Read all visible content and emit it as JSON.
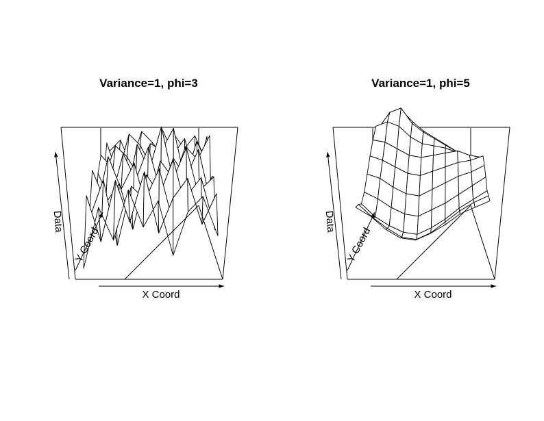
{
  "chart_data": [
    {
      "type": "perspective-surface",
      "title": "Variance=1, phi=3",
      "xlabel": "X Coord",
      "ylabel": "Y Coord",
      "zlabel": "Data",
      "xlim": [
        0,
        1
      ],
      "ylim": [
        0,
        1
      ],
      "zlim": [
        -2.6,
        2.6
      ],
      "grid_size": 10,
      "x": [
        0.0,
        0.111,
        0.222,
        0.333,
        0.444,
        0.556,
        0.667,
        0.778,
        0.889,
        1.0
      ],
      "y": [
        0.0,
        0.111,
        0.222,
        0.333,
        0.444,
        0.556,
        0.667,
        0.778,
        0.889,
        1.0
      ],
      "z": [
        [
          -2.2,
          0.6,
          -0.9,
          1.4,
          -0.3,
          0.9,
          -1.6,
          0.4,
          1.1,
          -0.7
        ],
        [
          0.8,
          -1.3,
          1.5,
          -0.4,
          1.9,
          -0.9,
          0.7,
          1.6,
          -0.5,
          0.9
        ],
        [
          -0.6,
          1.2,
          -1.8,
          0.9,
          0.3,
          1.7,
          -0.8,
          0.5,
          1.3,
          -1.1
        ],
        [
          1.3,
          -0.2,
          0.7,
          -1.4,
          1.1,
          0.2,
          1.8,
          -0.6,
          0.4,
          1.0
        ],
        [
          -1.1,
          1.6,
          0.1,
          1.3,
          -0.9,
          1.4,
          0.6,
          2.0,
          -0.3,
          0.7
        ],
        [
          0.5,
          -0.8,
          1.4,
          0.2,
          1.7,
          -0.4,
          1.2,
          0.3,
          1.6,
          -0.9
        ],
        [
          1.0,
          0.4,
          -1.2,
          1.5,
          0.3,
          2.3,
          -0.2,
          1.4,
          0.8,
          1.9
        ],
        [
          -0.4,
          1.1,
          0.6,
          -0.3,
          1.2,
          0.9,
          1.9,
          -0.5,
          1.3,
          0.2
        ],
        [
          0.9,
          -0.6,
          1.3,
          0.8,
          -0.2,
          1.5,
          0.4,
          1.1,
          -0.8,
          1.2
        ],
        [
          0.2,
          0.7,
          -0.4,
          1.1,
          0.6,
          -0.1,
          1.0,
          0.3,
          0.9,
          -0.2
        ]
      ]
    },
    {
      "type": "perspective-surface",
      "title": "Variance=1, phi=5",
      "xlabel": "X Coord",
      "ylabel": "Y Coord",
      "zlabel": "Data",
      "xlim": [
        0,
        1
      ],
      "ylim": [
        0,
        1
      ],
      "zlim": [
        -2.6,
        2.6
      ],
      "grid_size": 10,
      "x": [
        0.0,
        0.111,
        0.222,
        0.333,
        0.444,
        0.556,
        0.667,
        0.778,
        0.889,
        1.0
      ],
      "y": [
        0.0,
        0.111,
        0.222,
        0.333,
        0.444,
        0.556,
        0.667,
        0.778,
        0.889,
        1.0
      ],
      "z": [
        [
          0.6,
          0.2,
          -0.4,
          -0.8,
          -0.9,
          -0.6,
          -0.2,
          0.3,
          0.6,
          0.9
        ],
        [
          0.4,
          -0.2,
          -0.7,
          -1.1,
          -1.2,
          -0.9,
          -0.4,
          0.1,
          0.5,
          0.8
        ],
        [
          0.1,
          -0.5,
          -0.9,
          -1.2,
          -1.3,
          -1.0,
          -0.6,
          -0.1,
          0.3,
          0.7
        ],
        [
          0.3,
          0.0,
          -0.4,
          -0.7,
          -0.8,
          -0.5,
          -0.2,
          0.2,
          0.6,
          1.0
        ],
        [
          0.8,
          0.6,
          0.2,
          -0.1,
          -0.2,
          0.1,
          0.4,
          0.7,
          0.9,
          1.2
        ],
        [
          1.3,
          1.1,
          0.8,
          0.5,
          0.4,
          0.6,
          0.8,
          1.0,
          1.1,
          1.3
        ],
        [
          1.7,
          1.6,
          1.3,
          1.0,
          0.9,
          1.0,
          1.1,
          1.2,
          1.0,
          0.9
        ],
        [
          2.0,
          2.2,
          2.0,
          1.5,
          1.2,
          1.1,
          1.0,
          0.8,
          0.6,
          0.5
        ],
        [
          1.6,
          2.3,
          2.5,
          1.8,
          1.4,
          1.1,
          0.8,
          0.5,
          0.3,
          0.2
        ],
        [
          1.2,
          1.8,
          2.0,
          1.5,
          1.1,
          0.8,
          0.5,
          0.2,
          0.0,
          -0.1
        ]
      ]
    }
  ]
}
